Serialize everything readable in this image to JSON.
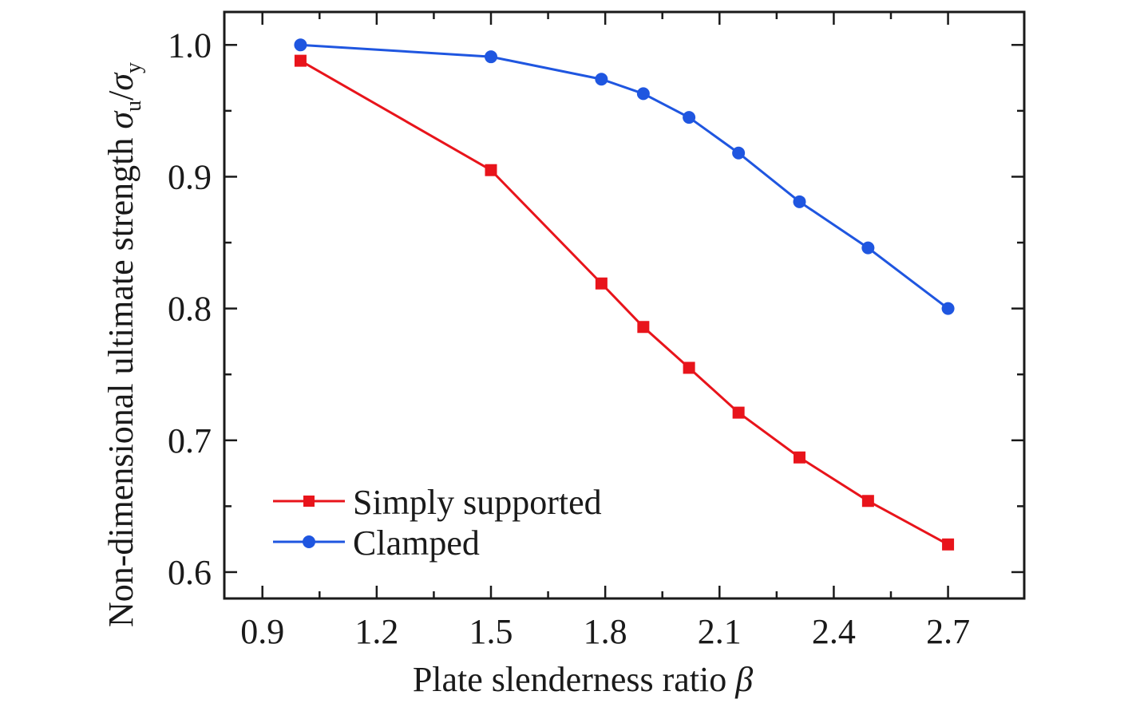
{
  "chart_data": {
    "type": "line",
    "xlabel": "Plate slenderness ratio β",
    "ylabel": "Non-dimensional ultimate strength σu/σy",
    "ylabel_parts": {
      "text": "Non-dimensional ultimate strength ",
      "sigma": "σ",
      "sub_u": "u",
      "slash": "/",
      "sub_y": "y"
    },
    "xlabel_parts": {
      "text": "Plate slenderness ratio ",
      "beta": "β"
    },
    "xlim": [
      0.8,
      2.9
    ],
    "ylim": [
      0.58,
      1.025
    ],
    "x_ticks": [
      "0.9",
      "1.2",
      "1.5",
      "1.8",
      "2.1",
      "2.4",
      "2.7"
    ],
    "y_ticks": [
      "0.6",
      "0.7",
      "0.8",
      "0.9",
      "1.0"
    ],
    "legend_position": "lower-left",
    "grid": false,
    "series": [
      {
        "name": "Simply supported",
        "marker": "square",
        "color": "#e8141b",
        "x": [
          1.0,
          1.5,
          1.79,
          1.9,
          2.02,
          2.15,
          2.31,
          2.49,
          2.7
        ],
        "y": [
          0.988,
          0.905,
          0.819,
          0.786,
          0.755,
          0.721,
          0.687,
          0.654,
          0.621
        ]
      },
      {
        "name": "Clamped",
        "marker": "circle",
        "color": "#1f56e0",
        "x": [
          1.0,
          1.5,
          1.79,
          1.9,
          2.02,
          2.15,
          2.31,
          2.49,
          2.7
        ],
        "y": [
          1.0,
          0.991,
          0.974,
          0.963,
          0.945,
          0.918,
          0.881,
          0.846,
          0.8
        ]
      }
    ]
  }
}
